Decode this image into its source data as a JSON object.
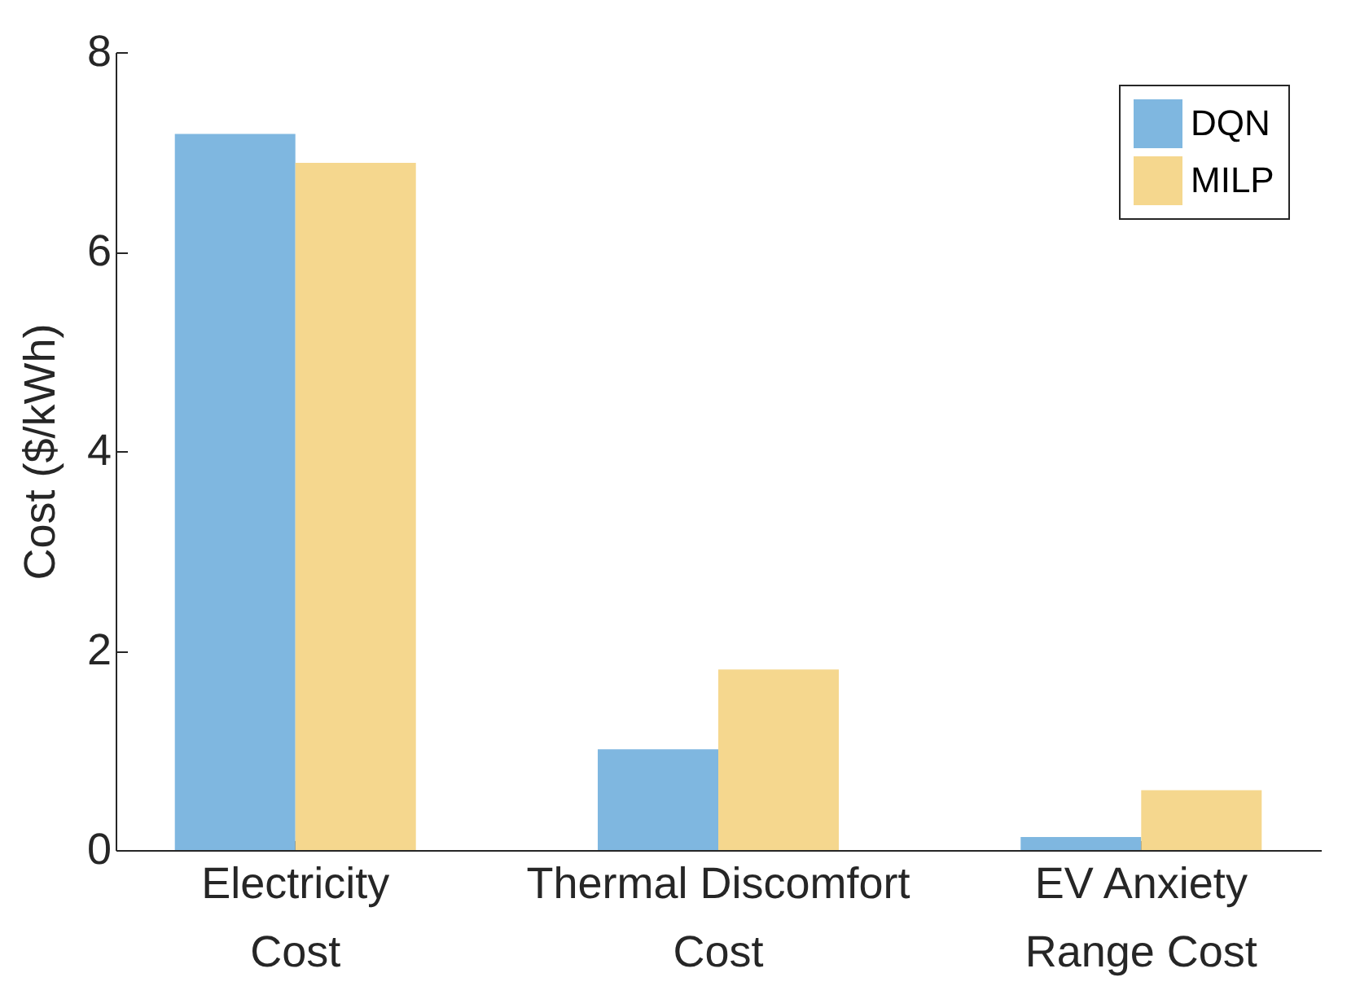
{
  "chart_data": {
    "type": "bar",
    "ylabel": "Cost ($/kWh)",
    "categories": [
      "Electricity\nCost",
      "Thermal Discomfort\nCost",
      "EV Anxiety\nRange Cost"
    ],
    "series": [
      {
        "name": "DQN",
        "color": "#7fb7e0",
        "values": [
          7.18,
          1.01,
          0.13
        ]
      },
      {
        "name": "MILP",
        "color": "#f5d78e",
        "values": [
          6.89,
          1.81,
          0.6
        ]
      }
    ],
    "ylim": [
      0,
      8
    ],
    "yticks": [
      0,
      2,
      4,
      6,
      8
    ],
    "legend": "top right",
    "grid": false
  }
}
